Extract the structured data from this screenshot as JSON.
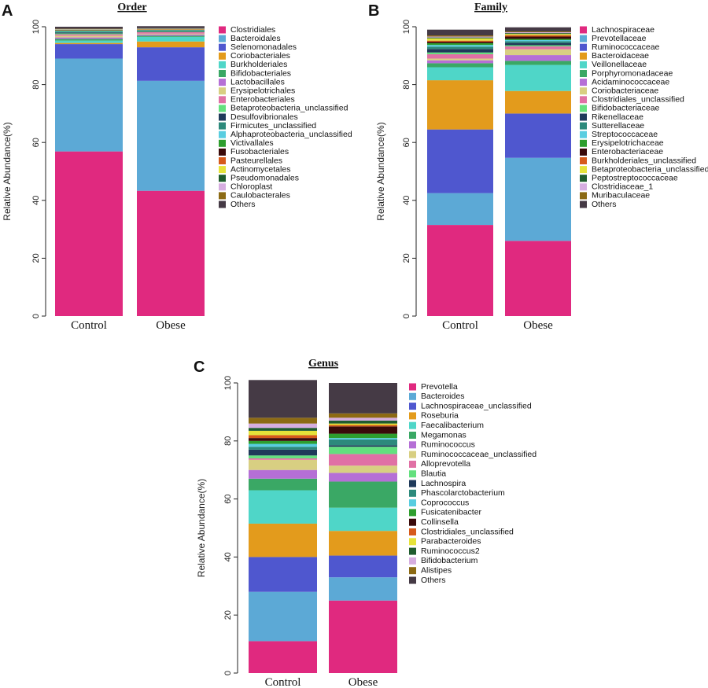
{
  "chart_data": [
    {
      "type": "bar",
      "stacked": true,
      "panel": "A",
      "title": "Order",
      "ylabel": "Relative Abundance(%)",
      "ylim": [
        0,
        100
      ],
      "yticks": [
        0,
        20,
        40,
        60,
        80,
        100
      ],
      "categories": [
        "Control",
        "Obese"
      ],
      "series": [
        {
          "name": "Clostridiales",
          "color": "#e0297f",
          "values": [
            56.9,
            43.3
          ]
        },
        {
          "name": "Bacteroidales",
          "color": "#5ca9d6",
          "values": [
            32.1,
            38.0
          ]
        },
        {
          "name": "Selenomonadales",
          "color": "#4f57cf",
          "values": [
            5.0,
            11.6
          ]
        },
        {
          "name": "Coriobacteriales",
          "color": "#e39b1c",
          "values": [
            0.4,
            2.0
          ]
        },
        {
          "name": "Burkholderiales",
          "color": "#4fd6c8",
          "values": [
            0.8,
            1.6
          ]
        },
        {
          "name": "Bifidobacteriales",
          "color": "#3aa865",
          "values": [
            0.6,
            0.4
          ]
        },
        {
          "name": "Lactobacillales",
          "color": "#b56fd6",
          "values": [
            0.5,
            0.4
          ]
        },
        {
          "name": "Erysipelotrichales",
          "color": "#d8cf82",
          "values": [
            0.6,
            0.3
          ]
        },
        {
          "name": "Enterobacteriales",
          "color": "#e070a5",
          "values": [
            0.5,
            0.5
          ]
        },
        {
          "name": "Betaproteobacteria_unclassified",
          "color": "#63e07e",
          "values": [
            0.3,
            0.2
          ]
        },
        {
          "name": "Desulfovibrionales",
          "color": "#1f3a5a",
          "values": [
            0.3,
            0.2
          ]
        },
        {
          "name": "Firmicutes_unclassified",
          "color": "#2d8a7c",
          "values": [
            0.3,
            0.2
          ]
        },
        {
          "name": "Alphaproteobacteria_unclassified",
          "color": "#58cde0",
          "values": [
            0.2,
            0.1
          ]
        },
        {
          "name": "Victivallales",
          "color": "#2e9e2e",
          "values": [
            0.2,
            0.1
          ]
        },
        {
          "name": "Fusobacteriales",
          "color": "#3a0a0a",
          "values": [
            0.1,
            0.1
          ]
        },
        {
          "name": "Pasteurellales",
          "color": "#d65a1c",
          "values": [
            0.1,
            0.1
          ]
        },
        {
          "name": "Actinomycetales",
          "color": "#e6e33a",
          "values": [
            0.1,
            0.1
          ]
        },
        {
          "name": "Pseudomonadales",
          "color": "#1f5c2e",
          "values": [
            0.1,
            0.1
          ]
        },
        {
          "name": "Chloroplast",
          "color": "#d6aee0",
          "values": [
            0.1,
            0.1
          ]
        },
        {
          "name": "Caulobacterales",
          "color": "#8c6a14",
          "values": [
            0.1,
            0.1
          ]
        },
        {
          "name": "Others",
          "color": "#453a45",
          "values": [
            0.7,
            0.7
          ]
        }
      ]
    },
    {
      "type": "bar",
      "stacked": true,
      "panel": "B",
      "title": "Family",
      "ylabel": "Relative Abundance(%)",
      "ylim": [
        0,
        100
      ],
      "yticks": [
        0,
        20,
        40,
        60,
        80,
        100
      ],
      "categories": [
        "Control",
        "Obese"
      ],
      "series": [
        {
          "name": "Lachnospiraceae",
          "color": "#e0297f",
          "values": [
            31.5,
            26.0
          ]
        },
        {
          "name": "Prevotellaceae",
          "color": "#5ca9d6",
          "values": [
            11.0,
            28.7
          ]
        },
        {
          "name": "Ruminococcaceae",
          "color": "#4f57cf",
          "values": [
            22.0,
            15.3
          ]
        },
        {
          "name": "Bacteroidaceae",
          "color": "#e39b1c",
          "values": [
            17.0,
            7.8
          ]
        },
        {
          "name": "Veillonellaceae",
          "color": "#4fd6c8",
          "values": [
            4.5,
            9.0
          ]
        },
        {
          "name": "Porphyromonadaceae",
          "color": "#3aa865",
          "values": [
            1.4,
            1.4
          ]
        },
        {
          "name": "Acidaminococcaceae",
          "color": "#b56fd6",
          "values": [
            1.0,
            2.0
          ]
        },
        {
          "name": "Coriobacteriaceae",
          "color": "#d8cf82",
          "values": [
            0.6,
            2.0
          ]
        },
        {
          "name": "Clostridiales_unclassified",
          "color": "#e070a5",
          "values": [
            1.5,
            1.0
          ]
        },
        {
          "name": "Bifidobacteriaceae",
          "color": "#63e07e",
          "values": [
            0.6,
            0.4
          ]
        },
        {
          "name": "Rikenellaceae",
          "color": "#1f3a5a",
          "values": [
            1.2,
            0.8
          ]
        },
        {
          "name": "Sutterellaceae",
          "color": "#2d8a7c",
          "values": [
            0.8,
            0.6
          ]
        },
        {
          "name": "Streptococcaceae",
          "color": "#58cde0",
          "values": [
            0.6,
            0.4
          ]
        },
        {
          "name": "Erysipelotrichaceae",
          "color": "#2e9e2e",
          "values": [
            0.6,
            0.4
          ]
        },
        {
          "name": "Enterobacteriaceae",
          "color": "#3a0a0a",
          "values": [
            0.5,
            0.8
          ]
        },
        {
          "name": "Burkholderiales_unclassified",
          "color": "#d65a1c",
          "values": [
            0.4,
            0.5
          ]
        },
        {
          "name": "Betaproteobacteria_unclassified",
          "color": "#e6e33a",
          "values": [
            0.8,
            0.4
          ]
        },
        {
          "name": "Peptostreptococcaceae",
          "color": "#1f5c2e",
          "values": [
            0.3,
            0.3
          ]
        },
        {
          "name": "Clostridiaceae_1",
          "color": "#d6aee0",
          "values": [
            0.3,
            0.3
          ]
        },
        {
          "name": "Muribaculaceae",
          "color": "#8c6a14",
          "values": [
            0.4,
            0.3
          ]
        },
        {
          "name": "Others",
          "color": "#453a45",
          "values": [
            2.0,
            1.4
          ]
        }
      ]
    },
    {
      "type": "bar",
      "stacked": true,
      "panel": "C",
      "title": "Genus",
      "ylabel": "Relative Abundance(%)",
      "ylim": [
        0,
        100
      ],
      "yticks": [
        0,
        20,
        40,
        60,
        80,
        100
      ],
      "categories": [
        "Control",
        "Obese"
      ],
      "series": [
        {
          "name": "Prevotella",
          "color": "#e0297f",
          "values": [
            11.0,
            25.0
          ]
        },
        {
          "name": "Bacteroides",
          "color": "#5ca9d6",
          "values": [
            17.0,
            8.0
          ]
        },
        {
          "name": "Lachnospiraceae_unclassified",
          "color": "#4f57cf",
          "values": [
            12.0,
            7.5
          ]
        },
        {
          "name": "Roseburia",
          "color": "#e39b1c",
          "values": [
            11.5,
            8.5
          ]
        },
        {
          "name": "Faecalibacterium",
          "color": "#4fd6c8",
          "values": [
            11.5,
            8.0
          ]
        },
        {
          "name": "Megamonas",
          "color": "#3aa865",
          "values": [
            4.0,
            9.0
          ]
        },
        {
          "name": "Ruminococcus",
          "color": "#b56fd6",
          "values": [
            3.0,
            3.0
          ]
        },
        {
          "name": "Ruminococcaceae_unclassified",
          "color": "#d8cf82",
          "values": [
            3.5,
            2.5
          ]
        },
        {
          "name": "Alloprevotella",
          "color": "#e070a5",
          "values": [
            0.5,
            4.0
          ]
        },
        {
          "name": "Blautia",
          "color": "#63e07e",
          "values": [
            1.0,
            2.5
          ]
        },
        {
          "name": "Lachnospira",
          "color": "#1f3a5a",
          "values": [
            2.0,
            0.5
          ]
        },
        {
          "name": "Phascolarctobacterium",
          "color": "#2d8a7c",
          "values": [
            1.0,
            2.0
          ]
        },
        {
          "name": "Coprococcus",
          "color": "#58cde0",
          "values": [
            1.0,
            0.5
          ]
        },
        {
          "name": "Fusicatenibacter",
          "color": "#2e9e2e",
          "values": [
            1.0,
            1.5
          ]
        },
        {
          "name": "Collinsella",
          "color": "#3a0a0a",
          "values": [
            1.0,
            2.5
          ]
        },
        {
          "name": "Clostridiales_unclassified",
          "color": "#d65a1c",
          "values": [
            1.0,
            0.5
          ]
        },
        {
          "name": "Parabacteroides",
          "color": "#e6e33a",
          "values": [
            1.5,
            0.5
          ]
        },
        {
          "name": "Ruminococcus2",
          "color": "#1f5c2e",
          "values": [
            1.0,
            1.0
          ]
        },
        {
          "name": "Bifidobacterium",
          "color": "#d6aee0",
          "values": [
            1.5,
            1.0
          ]
        },
        {
          "name": "Alistipes",
          "color": "#8c6a14",
          "values": [
            2.0,
            1.5
          ]
        },
        {
          "name": "Others",
          "color": "#453a45",
          "values": [
            13.0,
            10.5
          ]
        }
      ]
    }
  ]
}
